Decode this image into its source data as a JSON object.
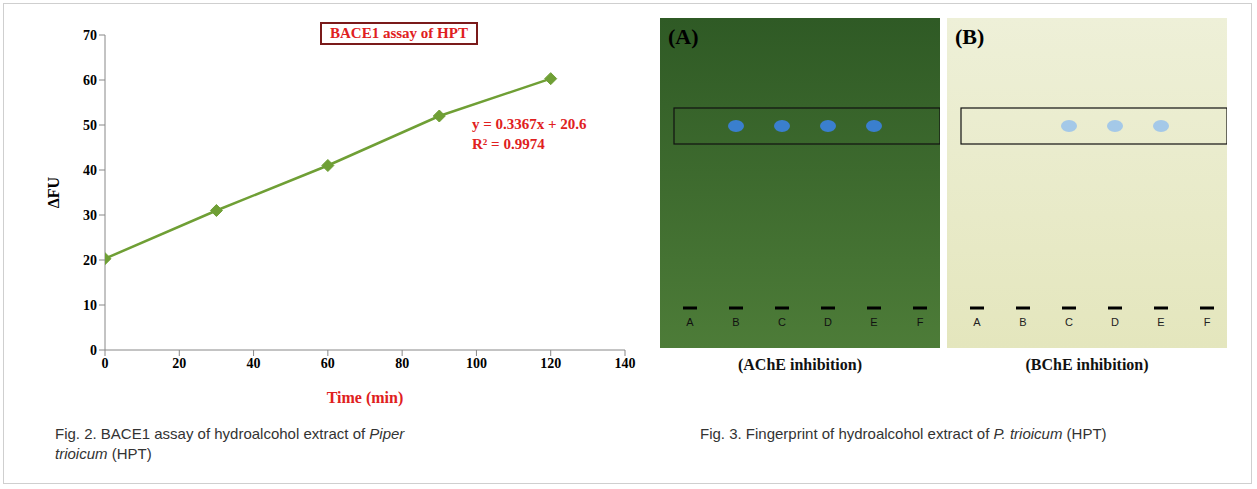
{
  "chart_data": {
    "type": "line",
    "title": "BACE1 assay of HPT",
    "x_label": "Time (min)",
    "y_label": "ΔFU",
    "x": [
      0,
      30,
      60,
      90,
      120
    ],
    "values": [
      20.3,
      31,
      41,
      52,
      60.3
    ],
    "color": "#6f9f35",
    "marker": "diamond",
    "xlim": [
      0,
      140
    ],
    "xticks": [
      0,
      20,
      40,
      60,
      80,
      100,
      120,
      140
    ],
    "ylim": [
      0,
      70
    ],
    "yticks": [
      0,
      10,
      20,
      30,
      40,
      50,
      60,
      70
    ],
    "grid": false,
    "annotations": [
      "y = 0.3367x + 20.6",
      "R² = 0.9974"
    ]
  },
  "captions": [
    {
      "prefix": "Fig. 2. BACE1 assay of hydroalcohol extract of ",
      "italic": "Piper trioicum",
      "suffix": " (HPT)"
    },
    {
      "prefix": "Fig. 3. Fingerprint of hydroalcohol extract of ",
      "italic": "P. trioicum",
      "suffix": " (HPT)"
    }
  ],
  "tlc": {
    "panels": [
      {
        "letter": "(A)",
        "caption": "(AChE inhibition)",
        "lanes": [
          "A",
          "B",
          "C",
          "D",
          "E",
          "F"
        ],
        "spot_lanes": [
          "B",
          "C",
          "D",
          "E"
        ]
      },
      {
        "letter": "(B)",
        "caption": "(BChE inhibition)",
        "lanes": [
          "A",
          "B",
          "C",
          "D",
          "E",
          "F"
        ],
        "spot_lanes": [
          "C",
          "D",
          "E"
        ]
      }
    ]
  }
}
